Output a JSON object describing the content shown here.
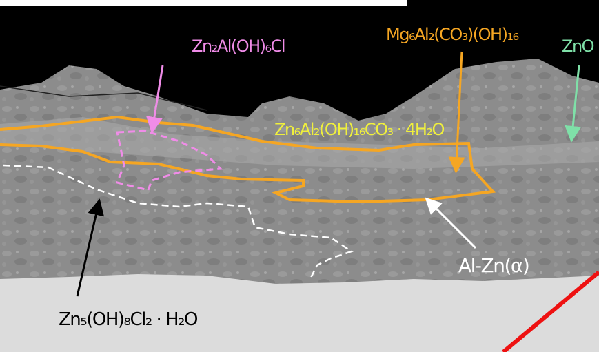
{
  "labels": [
    {
      "text": "Zn₂Al(OH)₆Cl"
    },
    {
      "text": "Mg₆Al₂(CO₃)(OH)₁₆"
    },
    {
      "text": "ZnO"
    },
    {
      "text": "Zn₆Al₂(OH)₁₆CO₃ · 4H₂O"
    },
    {
      "text": "Al-Zn(α)"
    },
    {
      "text": "Zn₅(OH)₈Cl₂ · H₂O"
    }
  ]
}
